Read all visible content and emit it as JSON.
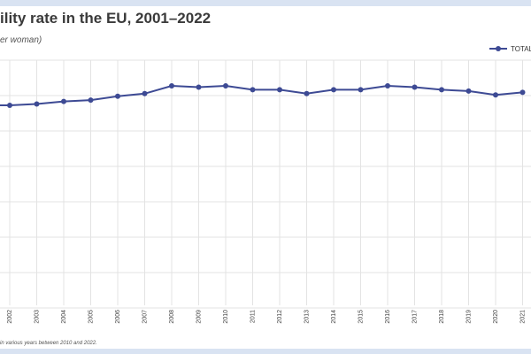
{
  "header": {
    "title": "ility rate in the EU, 2001–2022",
    "subtitle": "er woman)"
  },
  "footnote": "in various years between 2010 and 2022.",
  "chart_data": {
    "type": "line",
    "title": "ility rate in the EU, 2001–2022",
    "ylabel": "er woman)",
    "grid": true,
    "legend": "top-right",
    "categories": [
      "2001",
      "2002",
      "2003",
      "2004",
      "2005",
      "2006",
      "2007",
      "2008",
      "2009",
      "2010",
      "2011",
      "2012",
      "2013",
      "2014",
      "2015",
      "2016",
      "2017",
      "2018",
      "2019",
      "2020",
      "2021"
    ],
    "series": [
      {
        "name": "TOTAL",
        "color": "#3d4a94",
        "values": [
          1.46,
          1.46,
          1.47,
          1.49,
          1.5,
          1.53,
          1.55,
          1.61,
          1.6,
          1.61,
          1.58,
          1.58,
          1.55,
          1.58,
          1.58,
          1.61,
          1.6,
          1.58,
          1.57,
          1.54,
          1.56
        ]
      }
    ]
  }
}
